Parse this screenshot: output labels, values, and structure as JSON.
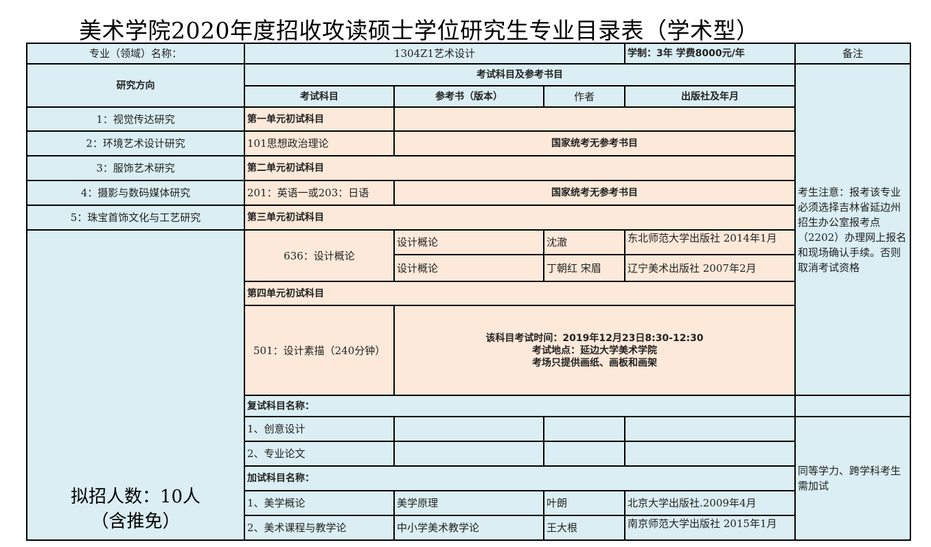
{
  "title": "美术学院2020年度招收攻读硕士学位研究生专业目录表（学术型）",
  "header": {
    "major_label": "专业（领域）名称：",
    "major_value": "1304Z1艺术设计",
    "duration": "学制：3年  学费8000元/年",
    "remarks": "备注"
  },
  "subheader": {
    "direction": "研究方向",
    "exam_group": "考试科目及参考书目",
    "subject": "考试科目",
    "book": "参考书（版本）",
    "author": "作者",
    "publisher": "出版社及年月"
  },
  "directions": [
    "1：视觉传达研究",
    "2：环境艺术设计研究",
    "3：服饰艺术研究",
    "4：摄影与数码媒体研究",
    "5：珠宝首饰文化与工艺研究"
  ],
  "quota": "拟招人数：10人（含推免）",
  "units": {
    "u1": "第一单元初试科目",
    "u1_subject": "101思想政治理论",
    "u1_book": "国家统考无参考书目",
    "u2": "第二单元初试科目",
    "u2_subject": "201：英语一或203：日语",
    "u2_book": "国家统考无参考书目",
    "u3": "第三单元初试科目",
    "u3_subject": "636：设计概论",
    "u3_books": [
      {
        "book": "设计概论",
        "author": "沈澈",
        "publisher": "东北师范大学出版社 2014年1月"
      },
      {
        "book": "设计概论",
        "author": "丁朝红 宋眉",
        "publisher": "辽宁美术出版社 2007年2月"
      }
    ],
    "u4": "第四单元初试科目",
    "u4_subject": "501：设计素描（240分钟）",
    "u4_note1": "该科目考试时间：2019年12月23日8:30-12:30",
    "u4_note2": "考试地点：延边大学美术学院",
    "u4_note3": "考场只提供画纸、画板和画架"
  },
  "retest": {
    "label": "复试科目名称：",
    "items": [
      "1、创意设计",
      "2、专业论文"
    ]
  },
  "extra": {
    "label": "加试科目名称：",
    "items": [
      {
        "subject": "1、美学概论",
        "book": "美学原理",
        "author": "叶朗",
        "publisher": "北京大学出版社.2009年4月"
      },
      {
        "subject": "2、美术课程与教学论",
        "book": "中小学美术教学论",
        "author": "王大根",
        "publisher": "南京师范大学出版社 2015年1月"
      }
    ]
  },
  "notes": {
    "registration": "考生注意：报考该专业必须选择吉林省延边州招生办公室报考点（2202）办理网上报名和现场确认手续。否则取消考试资格",
    "extra": "同等学力、跨学科考生需加试"
  }
}
